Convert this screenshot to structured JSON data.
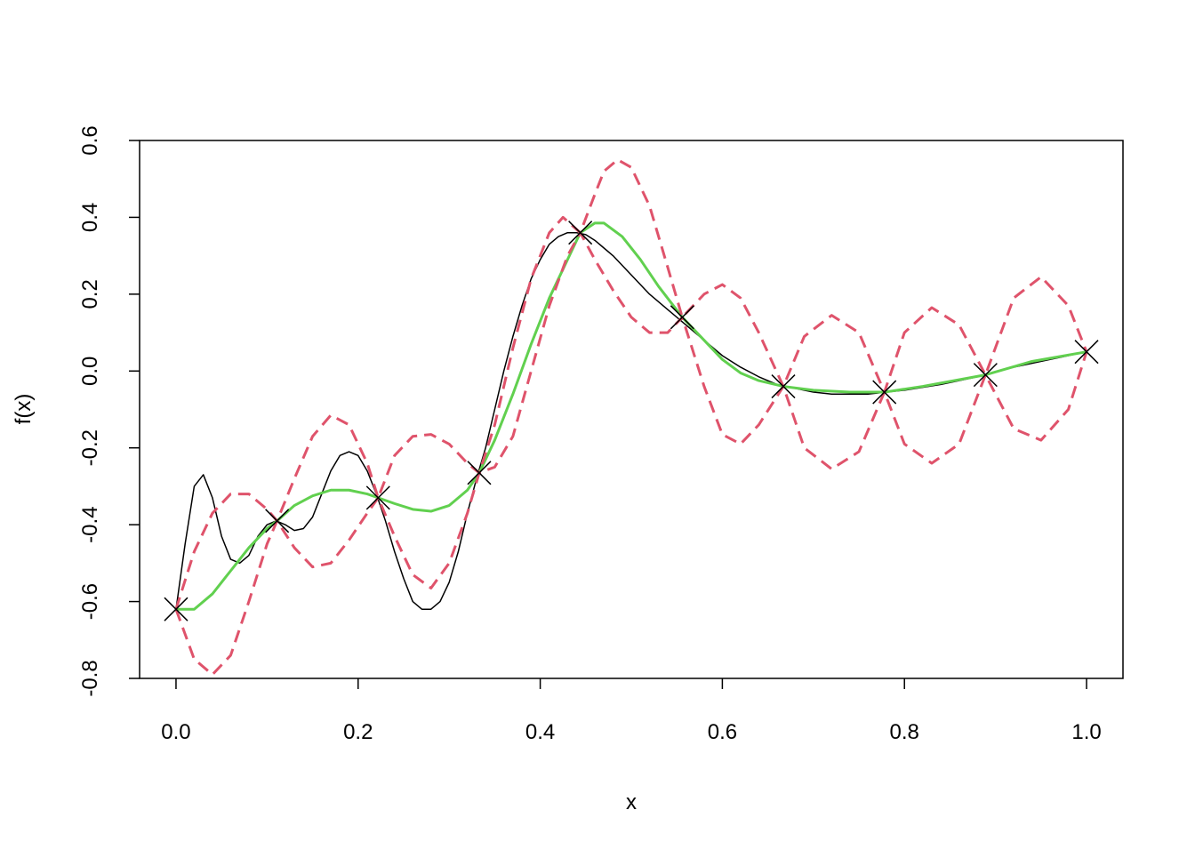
{
  "chart_data": {
    "type": "line",
    "x_label": "x",
    "y_label": "f(x)",
    "xlim": [
      -0.04,
      1.04
    ],
    "ylim": [
      -0.8,
      0.6
    ],
    "xticks": [
      {
        "value": 0,
        "label": "0.0"
      },
      0.2,
      0.4,
      0.6,
      0.8,
      {
        "value": 1,
        "label": "1.0"
      }
    ],
    "yticks": [
      -0.8,
      -0.6,
      -0.4,
      -0.2,
      {
        "value": 0,
        "label": "0.0"
      },
      0.2,
      0.4,
      0.6
    ],
    "series": [
      {
        "type": "line",
        "color": "#000000",
        "dash": false,
        "width": 1.5,
        "x": [
          0,
          0.01,
          0.02,
          0.03,
          0.04,
          0.05,
          0.06,
          0.07,
          0.08,
          0.09,
          0.1,
          0.11,
          0.12,
          0.13,
          0.14,
          0.15,
          0.16,
          0.17,
          0.18,
          0.19,
          0.2,
          0.21,
          0.22,
          0.23,
          0.24,
          0.25,
          0.26,
          0.27,
          0.28,
          0.29,
          0.3,
          0.31,
          0.32,
          0.33,
          0.34,
          0.35,
          0.36,
          0.37,
          0.38,
          0.39,
          0.4,
          0.41,
          0.42,
          0.43,
          0.44,
          0.45,
          0.46,
          0.47,
          0.48,
          0.5,
          0.52,
          0.54,
          0.56,
          0.58,
          0.6,
          0.62,
          0.64,
          0.66,
          0.68,
          0.7,
          0.72,
          0.74,
          0.76,
          0.78,
          0.8,
          0.84,
          0.88,
          0.92,
          0.96,
          1.0
        ],
        "values": [
          -0.62,
          -0.45,
          -0.3,
          -0.27,
          -0.33,
          -0.43,
          -0.49,
          -0.5,
          -0.48,
          -0.43,
          -0.4,
          -0.39,
          -0.4,
          -0.415,
          -0.41,
          -0.38,
          -0.32,
          -0.26,
          -0.22,
          -0.21,
          -0.22,
          -0.26,
          -0.32,
          -0.39,
          -0.47,
          -0.54,
          -0.6,
          -0.62,
          -0.62,
          -0.6,
          -0.55,
          -0.47,
          -0.37,
          -0.28,
          -0.2,
          -0.1,
          0.0,
          0.09,
          0.17,
          0.24,
          0.29,
          0.33,
          0.35,
          0.36,
          0.36,
          0.355,
          0.34,
          0.32,
          0.3,
          0.25,
          0.2,
          0.16,
          0.12,
          0.08,
          0.04,
          0.01,
          -0.015,
          -0.035,
          -0.045,
          -0.055,
          -0.06,
          -0.06,
          -0.06,
          -0.055,
          -0.05,
          -0.035,
          -0.015,
          0.01,
          0.03,
          0.05
        ]
      },
      {
        "type": "line",
        "color": "#61D04F",
        "dash": false,
        "width": 3,
        "x": [
          0,
          0.02,
          0.04,
          0.06,
          0.08,
          0.1,
          0.111,
          0.13,
          0.15,
          0.17,
          0.19,
          0.21,
          0.222,
          0.24,
          0.26,
          0.28,
          0.3,
          0.32,
          0.333,
          0.35,
          0.37,
          0.39,
          0.41,
          0.43,
          0.444,
          0.46,
          0.47,
          0.49,
          0.51,
          0.53,
          0.556,
          0.58,
          0.6,
          0.62,
          0.64,
          0.667,
          0.7,
          0.74,
          0.778,
          0.82,
          0.889,
          0.94,
          1.0
        ],
        "values": [
          -0.62,
          -0.62,
          -0.58,
          -0.52,
          -0.46,
          -0.41,
          -0.39,
          -0.35,
          -0.325,
          -0.31,
          -0.31,
          -0.32,
          -0.33,
          -0.345,
          -0.36,
          -0.365,
          -0.35,
          -0.31,
          -0.265,
          -0.18,
          -0.06,
          0.07,
          0.19,
          0.29,
          0.36,
          0.385,
          0.385,
          0.35,
          0.29,
          0.22,
          0.14,
          0.08,
          0.03,
          -0.005,
          -0.025,
          -0.04,
          -0.05,
          -0.055,
          -0.055,
          -0.04,
          -0.01,
          0.025,
          0.05
        ]
      },
      {
        "type": "line",
        "color": "#DF536B",
        "dash": true,
        "width": 3,
        "x": [
          0,
          0.02,
          0.04,
          0.06,
          0.08,
          0.1,
          0.111,
          0.13,
          0.15,
          0.17,
          0.19,
          0.21,
          0.222,
          0.24,
          0.26,
          0.28,
          0.3,
          0.32,
          0.333,
          0.35,
          0.37,
          0.39,
          0.41,
          0.425,
          0.444,
          0.46,
          0.47,
          0.485,
          0.5,
          0.52,
          0.54,
          0.556,
          0.58,
          0.6,
          0.62,
          0.64,
          0.667,
          0.69,
          0.72,
          0.75,
          0.778,
          0.8,
          0.83,
          0.86,
          0.889,
          0.92,
          0.95,
          0.98,
          1.0
        ],
        "values": [
          -0.62,
          -0.47,
          -0.37,
          -0.32,
          -0.32,
          -0.36,
          -0.39,
          -0.28,
          -0.17,
          -0.115,
          -0.14,
          -0.24,
          -0.33,
          -0.22,
          -0.17,
          -0.165,
          -0.19,
          -0.24,
          -0.265,
          -0.14,
          0.06,
          0.24,
          0.36,
          0.4,
          0.36,
          0.46,
          0.52,
          0.55,
          0.53,
          0.43,
          0.27,
          0.14,
          0.2,
          0.225,
          0.19,
          0.1,
          -0.04,
          0.09,
          0.145,
          0.1,
          -0.055,
          0.1,
          0.165,
          0.12,
          -0.01,
          0.19,
          0.245,
          0.17,
          0.05
        ]
      },
      {
        "type": "line",
        "color": "#DF536B",
        "dash": true,
        "width": 3,
        "x": [
          0,
          0.02,
          0.04,
          0.06,
          0.08,
          0.1,
          0.111,
          0.13,
          0.15,
          0.17,
          0.19,
          0.21,
          0.222,
          0.24,
          0.26,
          0.28,
          0.3,
          0.32,
          0.333,
          0.35,
          0.37,
          0.39,
          0.41,
          0.43,
          0.444,
          0.46,
          0.48,
          0.5,
          0.52,
          0.54,
          0.556,
          0.58,
          0.6,
          0.62,
          0.64,
          0.667,
          0.69,
          0.72,
          0.75,
          0.778,
          0.8,
          0.83,
          0.86,
          0.889,
          0.92,
          0.95,
          0.98,
          1.0
        ],
        "values": [
          -0.62,
          -0.75,
          -0.79,
          -0.74,
          -0.6,
          -0.45,
          -0.39,
          -0.46,
          -0.51,
          -0.5,
          -0.44,
          -0.37,
          -0.33,
          -0.43,
          -0.53,
          -0.565,
          -0.5,
          -0.37,
          -0.265,
          -0.25,
          -0.17,
          0.0,
          0.17,
          0.3,
          0.36,
          0.29,
          0.21,
          0.14,
          0.1,
          0.1,
          0.14,
          -0.04,
          -0.165,
          -0.19,
          -0.14,
          -0.04,
          -0.2,
          -0.255,
          -0.21,
          -0.055,
          -0.19,
          -0.24,
          -0.19,
          -0.01,
          -0.15,
          -0.18,
          -0.1,
          0.05
        ]
      },
      {
        "type": "points",
        "color": "#000000",
        "x": [
          0,
          0.111,
          0.222,
          0.333,
          0.444,
          0.556,
          0.667,
          0.778,
          0.889,
          1.0
        ],
        "values": [
          -0.62,
          -0.39,
          -0.33,
          -0.265,
          0.36,
          0.14,
          -0.04,
          -0.055,
          -0.01,
          0.05
        ]
      }
    ]
  }
}
